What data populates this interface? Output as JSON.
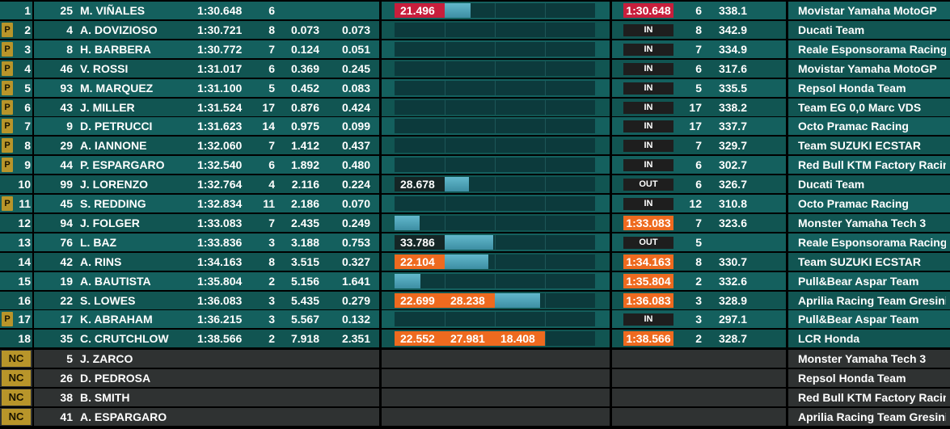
{
  "colors": {
    "row_teal": "#14605e",
    "row_teal_alt": "#115552",
    "row_grey": "#2f3232",
    "pit_badge": "#b8952a",
    "sector_best_red": "#c81e3c",
    "sector_personal_orange": "#ee6a1f",
    "progress_blue": "#4fa2b7"
  },
  "rows": [
    {
      "pos": "1",
      "pit": "",
      "num": "25",
      "name": "M. VIÑALES",
      "time": "1:30.648",
      "laps": "6",
      "gap": "",
      "diff": "",
      "segs": [
        {
          "text": "21.496",
          "color": "red"
        },
        {
          "text": "",
          "color": "blue",
          "fill": 0.52
        }
      ],
      "status": "",
      "laptime": "1:30.648",
      "laptime_color": "red",
      "lap": "6",
      "speed": "338.1",
      "team": "Movistar Yamaha MotoGP"
    },
    {
      "pos": "2",
      "pit": "P",
      "num": "4",
      "name": "A. DOVIZIOSO",
      "time": "1:30.721",
      "laps": "8",
      "gap": "0.073",
      "diff": "0.073",
      "segs": [],
      "status": "IN",
      "laptime": "",
      "laptime_color": "",
      "lap": "8",
      "speed": "342.9",
      "team": "Ducati Team"
    },
    {
      "pos": "3",
      "pit": "P",
      "num": "8",
      "name": "H. BARBERA",
      "time": "1:30.772",
      "laps": "7",
      "gap": "0.124",
      "diff": "0.051",
      "segs": [],
      "status": "IN",
      "laptime": "",
      "laptime_color": "",
      "lap": "7",
      "speed": "334.9",
      "team": "Reale Esponsorama Racing"
    },
    {
      "pos": "4",
      "pit": "P",
      "num": "46",
      "name": "V. ROSSI",
      "time": "1:31.017",
      "laps": "6",
      "gap": "0.369",
      "diff": "0.245",
      "segs": [],
      "status": "IN",
      "laptime": "",
      "laptime_color": "",
      "lap": "6",
      "speed": "317.6",
      "team": "Movistar Yamaha MotoGP"
    },
    {
      "pos": "5",
      "pit": "P",
      "num": "93",
      "name": "M. MARQUEZ",
      "time": "1:31.100",
      "laps": "5",
      "gap": "0.452",
      "diff": "0.083",
      "segs": [],
      "status": "IN",
      "laptime": "",
      "laptime_color": "",
      "lap": "5",
      "speed": "335.5",
      "team": "Repsol Honda Team"
    },
    {
      "pos": "6",
      "pit": "P",
      "num": "43",
      "name": "J. MILLER",
      "time": "1:31.524",
      "laps": "17",
      "gap": "0.876",
      "diff": "0.424",
      "segs": [],
      "status": "IN",
      "laptime": "",
      "laptime_color": "",
      "lap": "17",
      "speed": "338.2",
      "team": "Team EG 0,0 Marc VDS"
    },
    {
      "pos": "7",
      "pit": "P",
      "num": "9",
      "name": "D. PETRUCCI",
      "time": "1:31.623",
      "laps": "14",
      "gap": "0.975",
      "diff": "0.099",
      "segs": [],
      "status": "IN",
      "laptime": "",
      "laptime_color": "",
      "lap": "17",
      "speed": "337.7",
      "team": "Octo Pramac Racing"
    },
    {
      "pos": "8",
      "pit": "P",
      "num": "29",
      "name": "A. IANNONE",
      "time": "1:32.060",
      "laps": "7",
      "gap": "1.412",
      "diff": "0.437",
      "segs": [],
      "status": "IN",
      "laptime": "",
      "laptime_color": "",
      "lap": "7",
      "speed": "329.7",
      "team": "Team SUZUKI ECSTAR"
    },
    {
      "pos": "9",
      "pit": "P",
      "num": "44",
      "name": "P. ESPARGARO",
      "time": "1:32.540",
      "laps": "6",
      "gap": "1.892",
      "diff": "0.480",
      "segs": [],
      "status": "IN",
      "laptime": "",
      "laptime_color": "",
      "lap": "6",
      "speed": "302.7",
      "team": "Red Bull KTM Factory Racin"
    },
    {
      "pos": "10",
      "pit": "",
      "num": "99",
      "name": "J. LORENZO",
      "time": "1:32.764",
      "laps": "4",
      "gap": "2.116",
      "diff": "0.224",
      "segs": [
        {
          "text": "28.678",
          "color": "dark"
        },
        {
          "text": "",
          "color": "blue",
          "fill": 0.48
        }
      ],
      "status": "OUT",
      "laptime": "",
      "laptime_color": "",
      "lap": "6",
      "speed": "326.7",
      "team": "Ducati Team"
    },
    {
      "pos": "11",
      "pit": "P",
      "num": "45",
      "name": "S. REDDING",
      "time": "1:32.834",
      "laps": "11",
      "gap": "2.186",
      "diff": "0.070",
      "segs": [],
      "status": "IN",
      "laptime": "",
      "laptime_color": "",
      "lap": "12",
      "speed": "310.8",
      "team": "Octo Pramac Racing"
    },
    {
      "pos": "12",
      "pit": "",
      "num": "94",
      "name": "J. FOLGER",
      "time": "1:33.083",
      "laps": "7",
      "gap": "2.435",
      "diff": "0.249",
      "segs": [
        {
          "text": "",
          "color": "blue",
          "fill": 0.5
        }
      ],
      "status": "",
      "laptime": "1:33.083",
      "laptime_color": "orange",
      "lap": "7",
      "speed": "323.6",
      "team": "Monster Yamaha Tech 3"
    },
    {
      "pos": "13",
      "pit": "",
      "num": "76",
      "name": "L. BAZ",
      "time": "1:33.836",
      "laps": "3",
      "gap": "3.188",
      "diff": "0.753",
      "segs": [
        {
          "text": "33.786",
          "color": "dark"
        },
        {
          "text": "",
          "color": "blue",
          "fill": 0.97
        }
      ],
      "status": "OUT",
      "laptime": "",
      "laptime_color": "",
      "lap": "5",
      "speed": "",
      "team": "Reale Esponsorama Racing"
    },
    {
      "pos": "14",
      "pit": "",
      "num": "42",
      "name": "A. RINS",
      "time": "1:34.163",
      "laps": "8",
      "gap": "3.515",
      "diff": "0.327",
      "segs": [
        {
          "text": "22.104",
          "color": "orange"
        },
        {
          "text": "",
          "color": "blue",
          "fill": 0.87
        }
      ],
      "status": "",
      "laptime": "1:34.163",
      "laptime_color": "orange",
      "lap": "8",
      "speed": "330.7",
      "team": "Team SUZUKI ECSTAR"
    },
    {
      "pos": "15",
      "pit": "",
      "num": "19",
      "name": "A. BAUTISTA",
      "time": "1:35.804",
      "laps": "2",
      "gap": "5.156",
      "diff": "1.641",
      "segs": [
        {
          "text": "",
          "color": "blue",
          "fill": 0.52
        }
      ],
      "status": "",
      "laptime": "1:35.804",
      "laptime_color": "orange",
      "lap": "2",
      "speed": "332.6",
      "team": "Pull&Bear Aspar Team"
    },
    {
      "pos": "16",
      "pit": "",
      "num": "22",
      "name": "S. LOWES",
      "time": "1:36.083",
      "laps": "3",
      "gap": "5.435",
      "diff": "0.279",
      "segs": [
        {
          "text": "22.699",
          "color": "orange"
        },
        {
          "text": "28.238",
          "color": "orange"
        },
        {
          "text": "",
          "color": "blue",
          "fill": 0.9
        }
      ],
      "status": "",
      "laptime": "1:36.083",
      "laptime_color": "orange",
      "lap": "3",
      "speed": "328.9",
      "team": "Aprilia Racing Team Gresini"
    },
    {
      "pos": "17",
      "pit": "P",
      "num": "17",
      "name": "K. ABRAHAM",
      "time": "1:36.215",
      "laps": "3",
      "gap": "5.567",
      "diff": "0.132",
      "segs": [],
      "status": "IN",
      "laptime": "",
      "laptime_color": "",
      "lap": "3",
      "speed": "297.1",
      "team": "Pull&Bear Aspar Team"
    },
    {
      "pos": "18",
      "pit": "",
      "num": "35",
      "name": "C. CRUTCHLOW",
      "time": "1:38.566",
      "laps": "2",
      "gap": "7.918",
      "diff": "2.351",
      "segs": [
        {
          "text": "22.552",
          "color": "orange"
        },
        {
          "text": "27.981",
          "color": "orange"
        },
        {
          "text": "18.408",
          "color": "orange"
        }
      ],
      "status": "",
      "laptime": "1:38.566",
      "laptime_color": "orange",
      "lap": "2",
      "speed": "328.7",
      "team": "LCR Honda"
    }
  ],
  "nc_rows": [
    {
      "pos": "NC",
      "num": "5",
      "name": "J. ZARCO",
      "team": "Monster Yamaha Tech 3"
    },
    {
      "pos": "NC",
      "num": "26",
      "name": "D. PEDROSA",
      "team": "Repsol Honda Team"
    },
    {
      "pos": "NC",
      "num": "38",
      "name": "B. SMITH",
      "team": "Red Bull KTM Factory Racin"
    },
    {
      "pos": "NC",
      "num": "41",
      "name": "A. ESPARGARO",
      "team": "Aprilia Racing Team Gresini"
    }
  ]
}
